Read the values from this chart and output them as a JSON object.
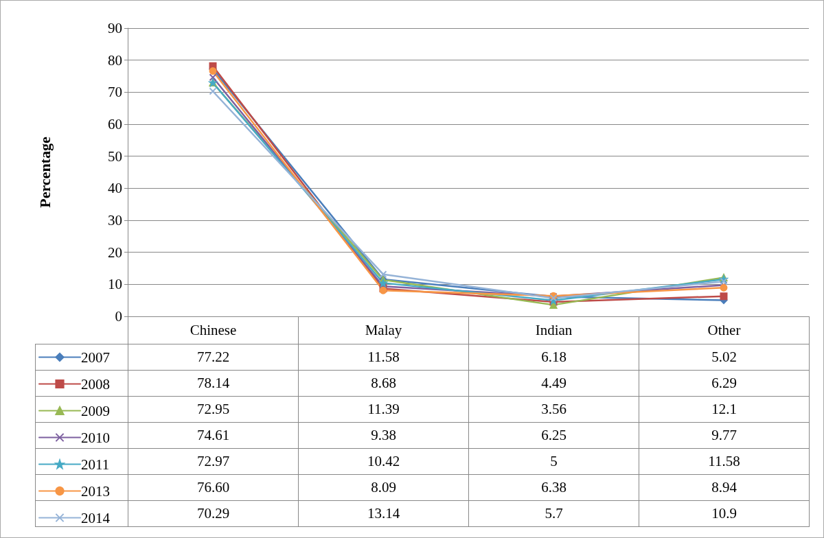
{
  "chart_data": {
    "type": "line",
    "ylabel": "Percentage",
    "categories": [
      "Chinese",
      "Malay",
      "Indian",
      "Other"
    ],
    "ylim": [
      0,
      90
    ],
    "yticks": [
      0,
      10,
      20,
      30,
      40,
      50,
      60,
      70,
      80,
      90
    ],
    "grid": "y",
    "legend": "bottom left",
    "line_style": "solid",
    "series": [
      {
        "name": "2007",
        "color": "#4a7ebb",
        "marker": "diamond",
        "values": [
          77.22,
          11.58,
          6.18,
          5.02
        ],
        "value_labels": [
          "77.22",
          "11.58",
          "6.18",
          "5.02"
        ]
      },
      {
        "name": "2008",
        "color": "#be4b48",
        "marker": "square",
        "values": [
          78.14,
          8.68,
          4.49,
          6.29
        ],
        "value_labels": [
          "78.14",
          "8.68",
          "4.49",
          "6.29"
        ]
      },
      {
        "name": "2009",
        "color": "#98b954",
        "marker": "triangle",
        "values": [
          72.95,
          11.39,
          3.56,
          12.1
        ],
        "value_labels": [
          "72.95",
          "11.39",
          "3.56",
          "12.1"
        ]
      },
      {
        "name": "2010",
        "color": "#7d60a0",
        "marker": "cross",
        "values": [
          74.61,
          9.38,
          6.25,
          9.77
        ],
        "value_labels": [
          "74.61",
          "9.38",
          "6.25",
          "9.77"
        ]
      },
      {
        "name": "2011",
        "color": "#46aac5",
        "marker": "star",
        "values": [
          72.97,
          10.42,
          5,
          11.58
        ],
        "value_labels": [
          "72.97",
          "10.42",
          "5",
          "11.58"
        ]
      },
      {
        "name": "2013",
        "color": "#f79646",
        "marker": "circle",
        "values": [
          76.6,
          8.09,
          6.38,
          8.94
        ],
        "value_labels": [
          "76.60",
          "8.09",
          "6.38",
          "8.94"
        ]
      },
      {
        "name": "2014",
        "color": "#95b3d7",
        "marker": "cross",
        "values": [
          70.29,
          13.14,
          5.7,
          10.9
        ],
        "value_labels": [
          "70.29",
          "13.14",
          "5.7",
          "10.9"
        ]
      }
    ]
  }
}
